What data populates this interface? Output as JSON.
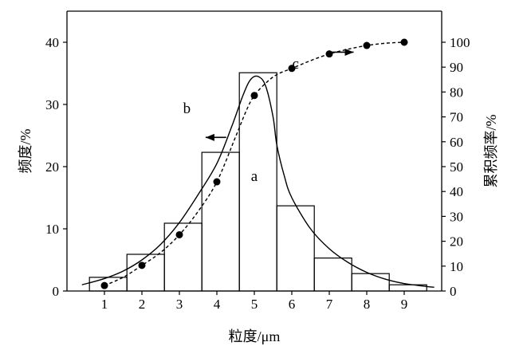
{
  "chart_data": {
    "type": "bar",
    "xlabel": "粒度/μm",
    "ylabel_left": "频度/%",
    "ylabel_right": "累积频率/%",
    "x_ticks": [
      1,
      2,
      3,
      4,
      5,
      6,
      7,
      8,
      9
    ],
    "xlim": [
      0,
      10
    ],
    "ylim_left": [
      0,
      45
    ],
    "ylim_right": [
      0,
      112.5
    ],
    "y_ticks_left": [
      0,
      10,
      20,
      30,
      40
    ],
    "y_ticks_right": [
      0,
      10,
      20,
      30,
      40,
      50,
      60,
      70,
      80,
      90,
      100
    ],
    "grid": false,
    "series": [
      {
        "label": "a",
        "kind": "histogram",
        "axis": "left",
        "bins": [
          {
            "from": 0.6,
            "to": 1.6,
            "value": 2.2
          },
          {
            "from": 1.6,
            "to": 2.6,
            "value": 5.9
          },
          {
            "from": 2.6,
            "to": 3.6,
            "value": 10.9
          },
          {
            "from": 3.6,
            "to": 4.6,
            "value": 22.3
          },
          {
            "from": 4.6,
            "to": 5.6,
            "value": 35.1
          },
          {
            "from": 5.6,
            "to": 6.6,
            "value": 13.7
          },
          {
            "from": 6.6,
            "to": 7.6,
            "value": 5.3
          },
          {
            "from": 7.6,
            "to": 8.6,
            "value": 2.8
          },
          {
            "from": 8.6,
            "to": 9.6,
            "value": 1.0
          }
        ]
      },
      {
        "label": "b",
        "kind": "line",
        "style": "solid",
        "axis": "left",
        "x": [
          0.4,
          1.0,
          1.5,
          2.0,
          2.5,
          3.0,
          3.5,
          4.0,
          4.4,
          4.7,
          4.9,
          5.1,
          5.3,
          5.5,
          5.6,
          5.8,
          6.0,
          6.5,
          7.0,
          7.5,
          8.0,
          8.5,
          9.0,
          9.5,
          9.8
        ],
        "y": [
          1.0,
          2.0,
          3.2,
          5.0,
          7.5,
          11.0,
          15.5,
          20.5,
          26.5,
          31.5,
          34.0,
          34.5,
          33.0,
          28.0,
          23.5,
          18.5,
          15.0,
          10.0,
          6.8,
          4.6,
          3.0,
          1.9,
          1.2,
          0.8,
          0.6
        ]
      },
      {
        "label": "c",
        "kind": "line",
        "style": "dashed",
        "markers": true,
        "axis": "right",
        "x": [
          1,
          2,
          3,
          4,
          5,
          6,
          7,
          8,
          9
        ],
        "y": [
          2.2,
          10.3,
          22.6,
          43.9,
          78.6,
          89.5,
          95.3,
          98.7,
          100.0
        ],
        "curve_x": [
          1.0,
          1.5,
          2.0,
          2.5,
          3.0,
          3.5,
          4.0,
          4.5,
          4.8,
          5.0,
          5.3,
          5.6,
          6.0,
          6.5,
          7.0,
          7.5,
          8.0,
          8.5,
          9.0
        ],
        "curve_y": [
          2.2,
          5.5,
          10.3,
          15.5,
          22.6,
          32.0,
          43.9,
          62.0,
          73.0,
          78.6,
          83.5,
          87.0,
          89.5,
          92.6,
          95.3,
          97.2,
          98.7,
          99.6,
          100.0
        ]
      }
    ],
    "annotations": [
      {
        "text": "a",
        "x": 5.0,
        "y_left": 17.7
      },
      {
        "text": "b",
        "x": 3.2,
        "y_left": 28.6
      },
      {
        "text": "c",
        "x": 6.1,
        "y_left": 35.8
      }
    ]
  }
}
